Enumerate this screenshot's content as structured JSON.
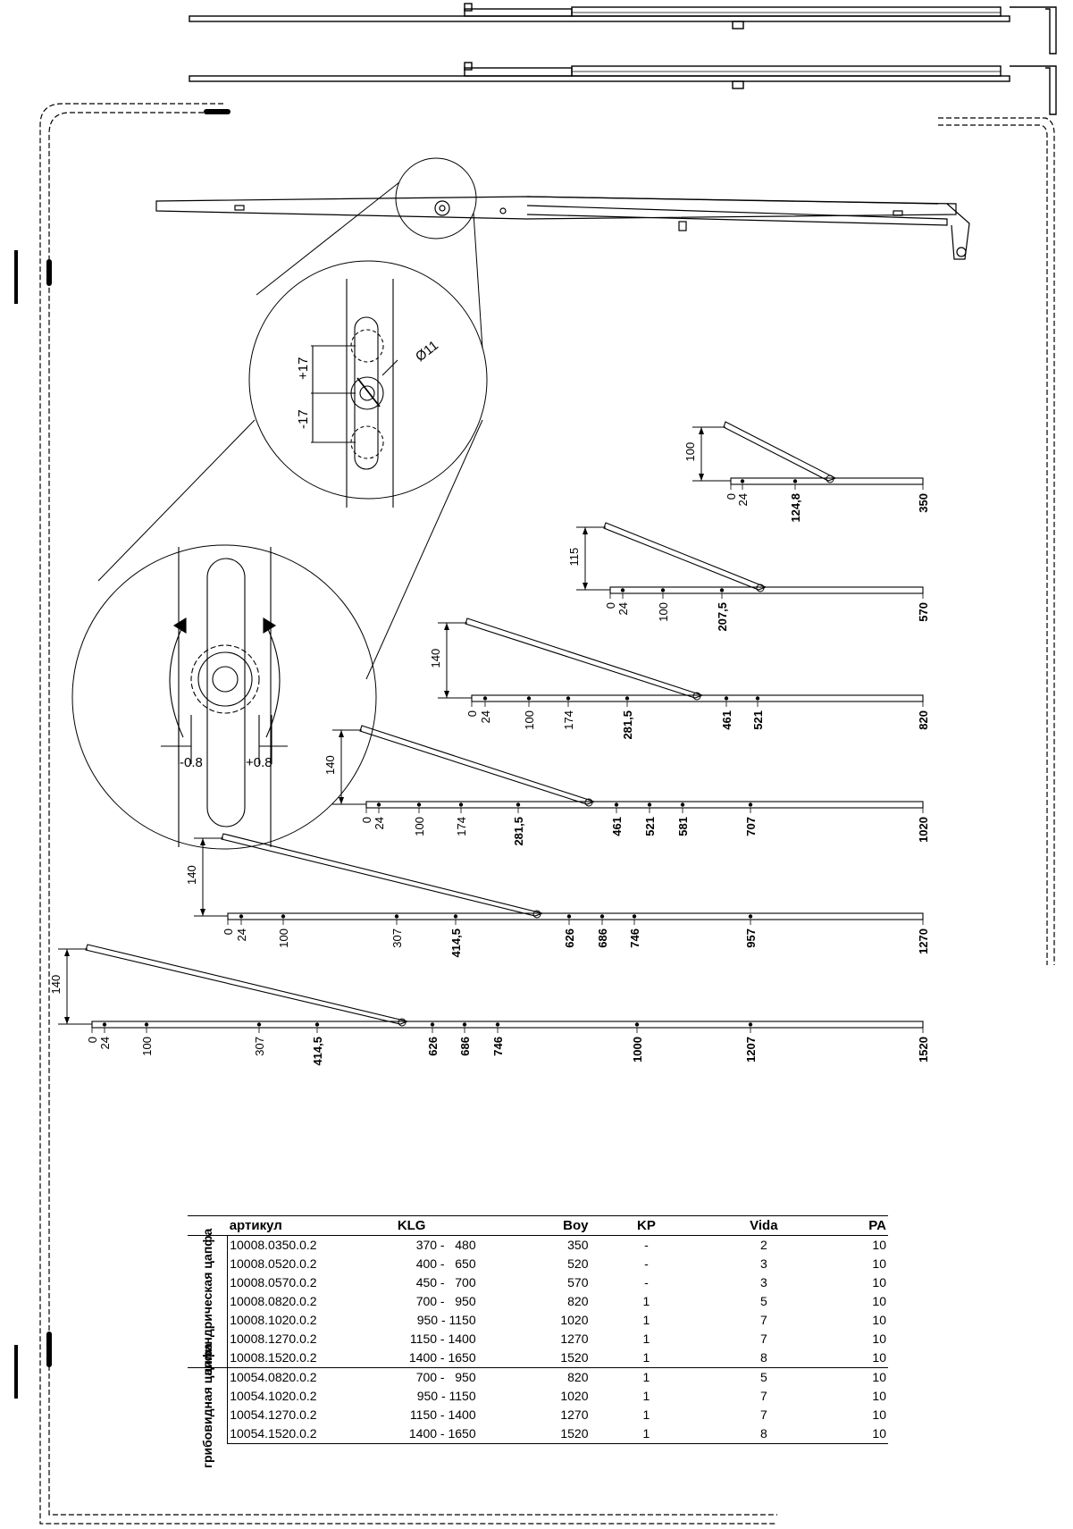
{
  "detail": {
    "diameter": "Ø11",
    "plus17": "+17",
    "minus17": "-17",
    "minus08": "-0.8",
    "plus08": "+0.8"
  },
  "stays": [
    {
      "height": "100",
      "dims": [
        "0",
        "24",
        "124,8",
        "350"
      ]
    },
    {
      "height": "115",
      "dims": [
        "0",
        "24",
        "100",
        "207,5",
        "570"
      ]
    },
    {
      "height": "140",
      "dims": [
        "0",
        "24",
        "100",
        "174",
        "281,5",
        "461",
        "521",
        "820"
      ]
    },
    {
      "height": "140",
      "dims": [
        "0",
        "24",
        "100",
        "174",
        "281,5",
        "461",
        "521",
        "581",
        "707",
        "1020"
      ]
    },
    {
      "height": "140",
      "dims": [
        "0",
        "24",
        "100",
        "307",
        "414,5",
        "626",
        "686",
        "746",
        "957",
        "1270"
      ]
    },
    {
      "height": "140",
      "dims": [
        "0",
        "24",
        "100",
        "307",
        "414,5",
        "626",
        "686",
        "746",
        "1000",
        "1207",
        "1520"
      ]
    }
  ],
  "table": {
    "headers": [
      "артикул",
      "KLG",
      "Boy",
      "KP",
      "Vida",
      "PA"
    ],
    "groups": [
      {
        "label": "цилиндрическая цапфа",
        "rows": [
          [
            "10008.0350.0.2",
            "370 -   480",
            "350",
            "-",
            "2",
            "10"
          ],
          [
            "10008.0520.0.2",
            "400 -   650",
            "520",
            "-",
            "3",
            "10"
          ],
          [
            "10008.0570.0.2",
            "450 -   700",
            "570",
            "-",
            "3",
            "10"
          ],
          [
            "10008.0820.0.2",
            "700 -   950",
            "820",
            "1",
            "5",
            "10"
          ],
          [
            "10008.1020.0.2",
            "950 - 1150",
            "1020",
            "1",
            "7",
            "10"
          ],
          [
            "10008.1270.0.2",
            "1150 - 1400",
            "1270",
            "1",
            "7",
            "10"
          ],
          [
            "10008.1520.0.2",
            "1400 - 1650",
            "1520",
            "1",
            "8",
            "10"
          ]
        ]
      },
      {
        "label": "грибовидная цапфа",
        "rows": [
          [
            "10054.0820.0.2",
            "700 -   950",
            "820",
            "1",
            "5",
            "10"
          ],
          [
            "10054.1020.0.2",
            "950 - 1150",
            "1020",
            "1",
            "7",
            "10"
          ],
          [
            "10054.1270.0.2",
            "1150 - 1400",
            "1270",
            "1",
            "7",
            "10"
          ],
          [
            "10054.1520.0.2",
            "1400 - 1650",
            "1520",
            "1",
            "8",
            "10"
          ]
        ]
      }
    ]
  }
}
